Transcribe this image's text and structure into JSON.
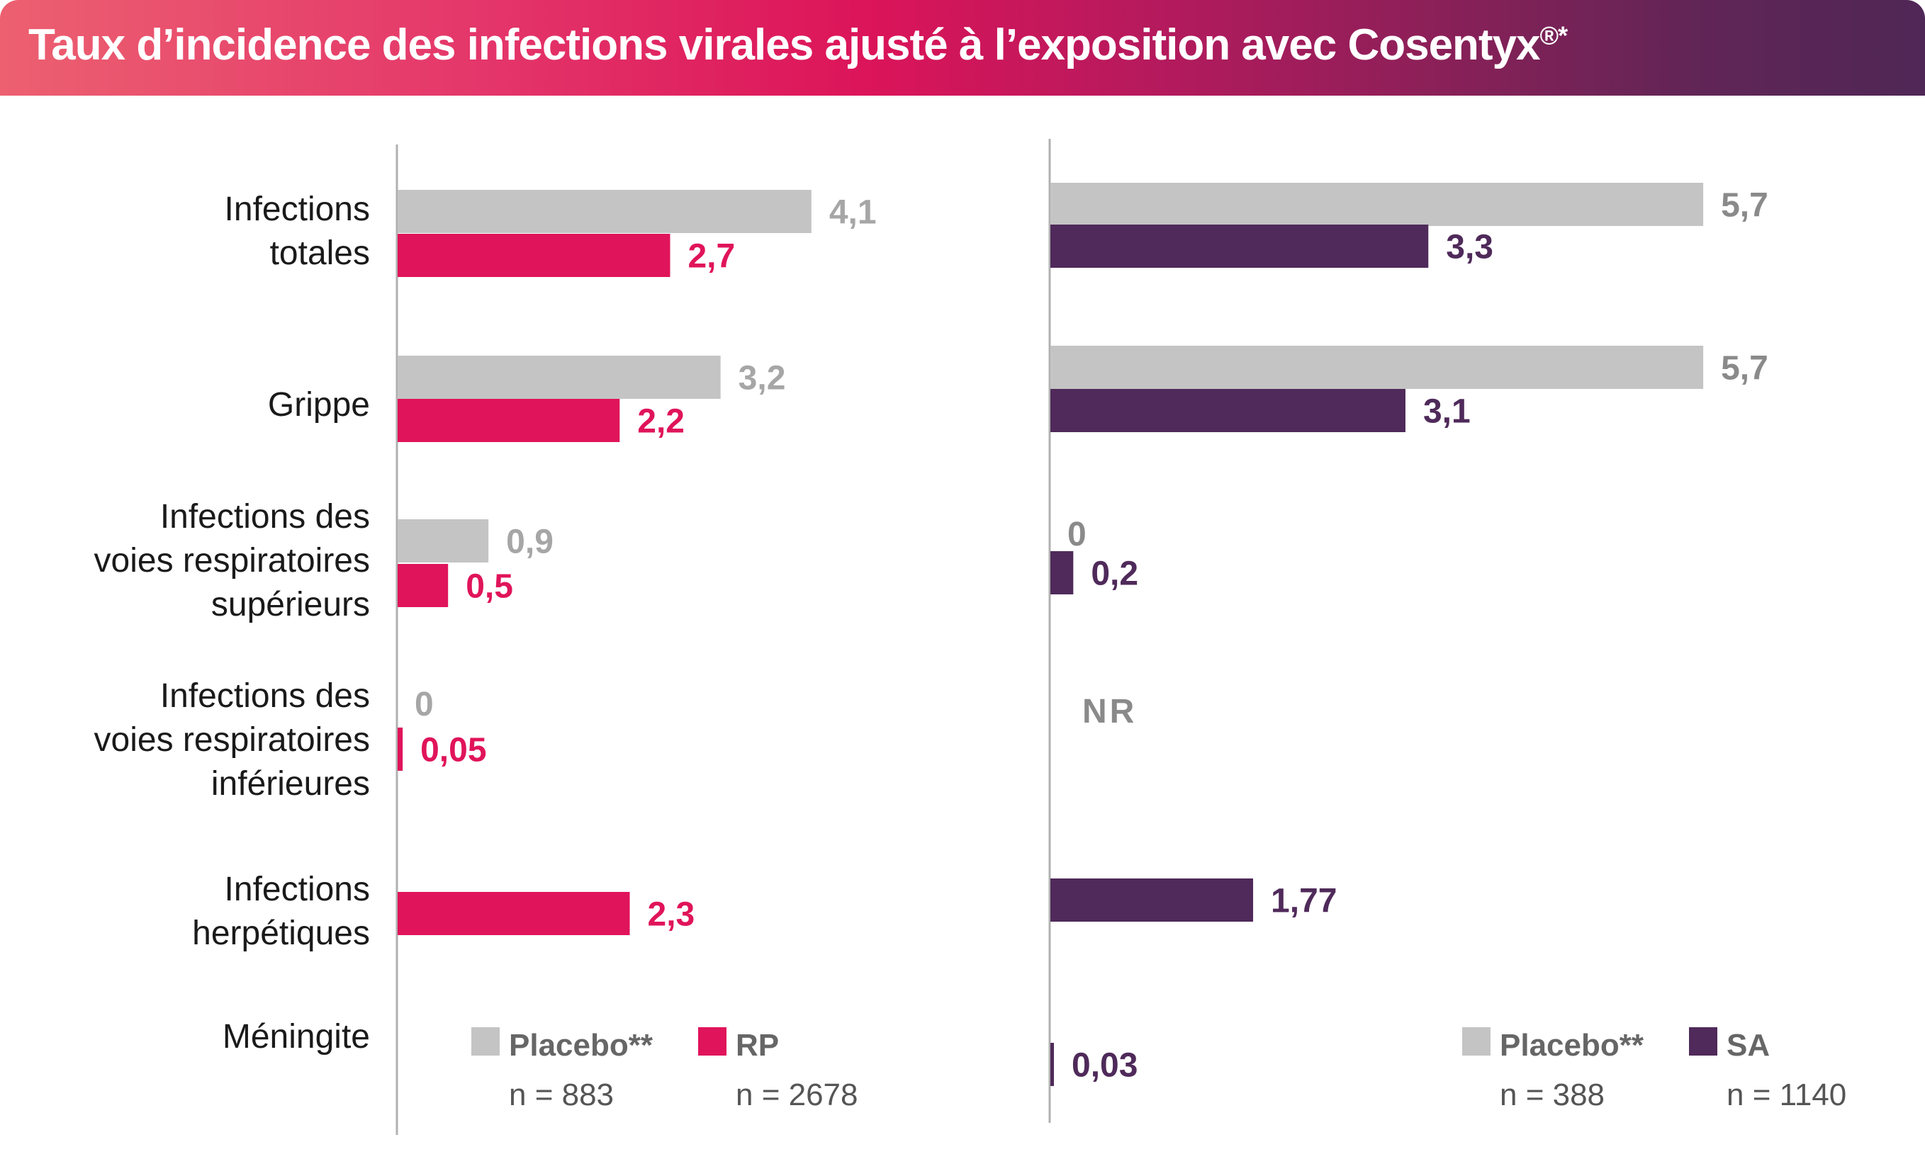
{
  "title": "Taux d’incidence des infections virales ajusté à l’exposition avec Cosentyx",
  "title_superscript": "®*",
  "colors": {
    "placebo": "#c4c4c4",
    "placebo_label": "#a6a6a6",
    "placebo_label_right": "#8a8a8a",
    "rp": "#e0145a",
    "sa": "#4f2a5a",
    "axis": "#b0b0b0"
  },
  "chart_data": [
    {
      "type": "bar",
      "orientation": "horizontal",
      "panel": "left",
      "categories": [
        "Infections totales",
        "Grippe",
        "Infections des voies respiratoires supérieurs",
        "Infections des voies respiratoires inférieures",
        "Infections herpétiques",
        "Méningite"
      ],
      "category_lines": [
        [
          "Infections",
          "totales"
        ],
        [
          "Grippe"
        ],
        [
          "Infections des",
          "voies respiratoires",
          "supérieurs"
        ],
        [
          "Infections des",
          "voies respiratoires",
          "inférieures"
        ],
        [
          "Infections",
          "herpétiques"
        ],
        [
          "Méningite"
        ]
      ],
      "series": [
        {
          "name": "Placebo**",
          "n_label": "n = 883",
          "values": [
            4.1,
            3.2,
            0.9,
            0,
            null,
            null
          ],
          "labels": [
            "4,1",
            "3,2",
            "0,9",
            "0",
            null,
            null
          ]
        },
        {
          "name": "RP",
          "n_label": "n = 2678",
          "values": [
            2.7,
            2.2,
            0.5,
            0.05,
            2.3,
            null
          ],
          "labels": [
            "2,7",
            "2,2",
            "0,5",
            "0,05",
            "2,3",
            null
          ]
        }
      ],
      "xlim": [
        0,
        4.1
      ],
      "legend": "bottom-right"
    },
    {
      "type": "bar",
      "orientation": "horizontal",
      "panel": "right",
      "categories": [
        "Infections totales",
        "Grippe",
        "Infections des voies respiratoires supérieurs",
        "Infections des voies respiratoires inférieures",
        "Infections herpétiques",
        "Méningite"
      ],
      "annotations": [
        {
          "category_index": 3,
          "text": "NR"
        }
      ],
      "series": [
        {
          "name": "Placebo**",
          "n_label": "n = 388",
          "values": [
            5.7,
            5.7,
            0,
            null,
            null,
            null
          ],
          "labels": [
            "5,7",
            "5,7",
            "0",
            null,
            null,
            null
          ]
        },
        {
          "name": "SA",
          "n_label": "n = 1140",
          "values": [
            3.3,
            3.1,
            0.2,
            null,
            1.77,
            0.03
          ],
          "labels": [
            "3,3",
            "3,1",
            "0,2",
            null,
            "1,77",
            "0,03"
          ]
        }
      ],
      "xlim": [
        0,
        5.7
      ],
      "legend": "bottom-right"
    }
  ]
}
